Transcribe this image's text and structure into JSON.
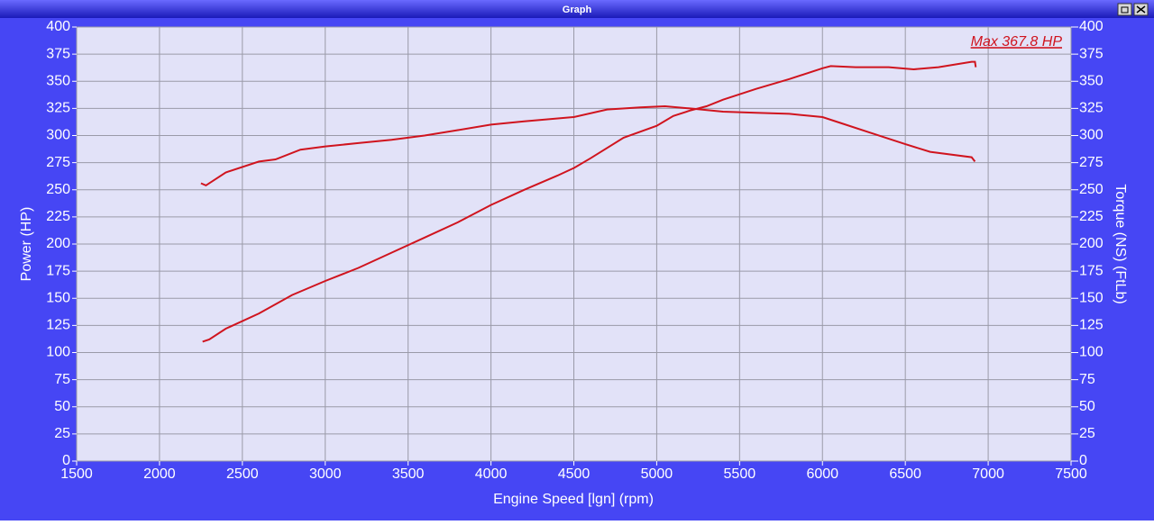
{
  "window": {
    "title": "Graph"
  },
  "chart_data": {
    "type": "line",
    "annotation": "Max 367.8 HP",
    "x_label": "Engine Speed [lgn] (rpm)",
    "y_label": "Power (HP)",
    "y2_label": "Torque (NS) (FtLb)",
    "xlim": [
      1500,
      7500
    ],
    "xticks": [
      1500,
      2000,
      2500,
      3000,
      3500,
      4000,
      4500,
      5000,
      5500,
      6000,
      6500,
      7000,
      7500
    ],
    "ylim": [
      0,
      400
    ],
    "yticks": [
      0,
      25,
      50,
      75,
      100,
      125,
      150,
      175,
      200,
      225,
      250,
      275,
      300,
      325,
      350,
      375,
      400
    ],
    "y2lim": [
      0,
      400
    ],
    "y2ticks": [
      0,
      25,
      50,
      75,
      100,
      125,
      150,
      175,
      200,
      225,
      250,
      275,
      300,
      325,
      350,
      375,
      400
    ],
    "grid": true,
    "series": [
      {
        "name": "Power",
        "color": "#d0141e",
        "x": [
          2260,
          2300,
          2400,
          2600,
          2800,
          3000,
          3200,
          3400,
          3600,
          3800,
          4000,
          4200,
          4400,
          4500,
          4600,
          4800,
          5000,
          5100,
          5200,
          5300,
          5400,
          5600,
          5800,
          6000,
          6050,
          6200,
          6400,
          6550,
          6700,
          6900,
          6920,
          6925
        ],
        "values": [
          110,
          112,
          122,
          136,
          153,
          166,
          178,
          192,
          206,
          220,
          236,
          250,
          263,
          270,
          279,
          298,
          309,
          318,
          323,
          327,
          333,
          343,
          352,
          362,
          364,
          363,
          363,
          361,
          363,
          368,
          368,
          363
        ]
      },
      {
        "name": "Torque",
        "color": "#d0141e",
        "axis": "y2",
        "x": [
          2250,
          2280,
          2400,
          2600,
          2700,
          2850,
          3000,
          3200,
          3400,
          3600,
          3800,
          4000,
          4200,
          4500,
          4700,
          4900,
          5050,
          5200,
          5400,
          5600,
          5800,
          6000,
          6100,
          6300,
          6500,
          6650,
          6900,
          6920
        ],
        "values": [
          256,
          254,
          266,
          276,
          278,
          287,
          290,
          293,
          296,
          300,
          305,
          310,
          313,
          317,
          324,
          326,
          327,
          325,
          322,
          321,
          320,
          317,
          312,
          302,
          292,
          285,
          280,
          276
        ]
      }
    ]
  }
}
